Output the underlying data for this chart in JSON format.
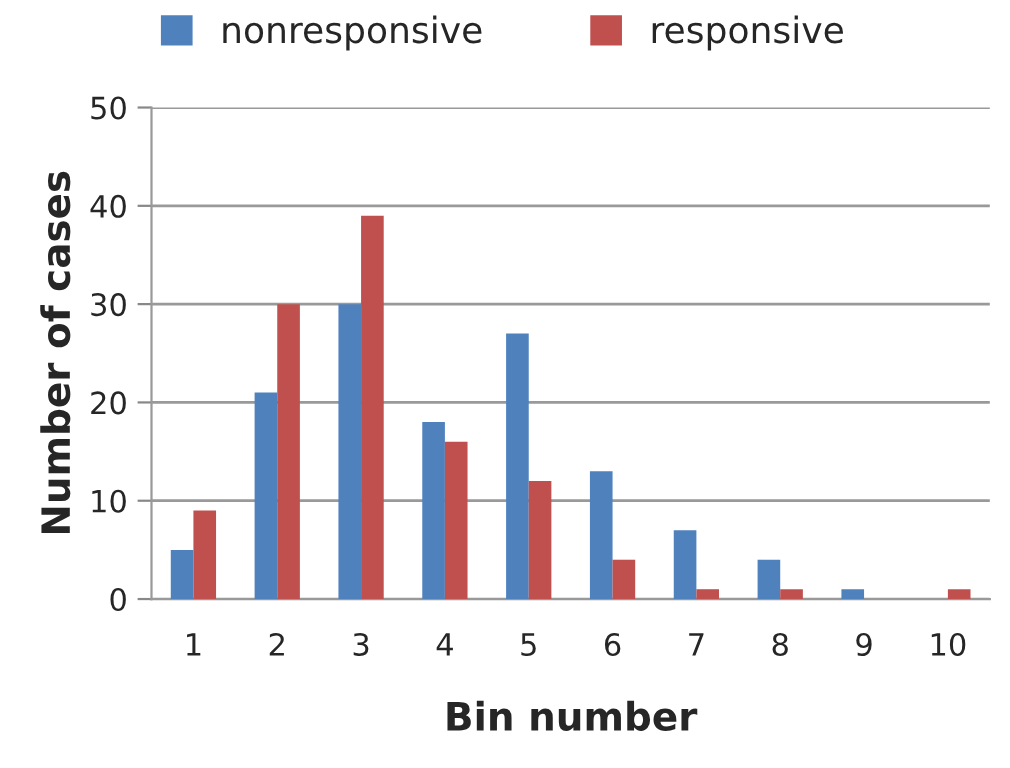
{
  "chart_data": {
    "type": "bar",
    "xlabel": "Bin number",
    "ylabel": "Number of cases",
    "categories": [
      "1",
      "2",
      "3",
      "4",
      "5",
      "6",
      "7",
      "8",
      "9",
      "10"
    ],
    "series": [
      {
        "name": "nonresponsive",
        "color": "#4f81bd",
        "values": [
          5,
          21,
          30,
          18,
          27,
          13,
          7,
          4,
          1,
          0
        ]
      },
      {
        "name": "responsive",
        "color": "#c0504d",
        "values": [
          9,
          30,
          39,
          16,
          12,
          4,
          1,
          1,
          0,
          1
        ]
      }
    ],
    "ylim": [
      0,
      50
    ],
    "yticks": [
      0,
      10,
      20,
      30,
      40,
      50
    ],
    "grid": "y",
    "legend": "top"
  }
}
